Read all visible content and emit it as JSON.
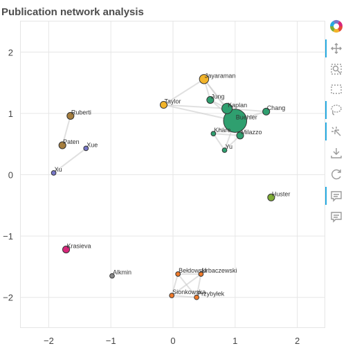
{
  "chart_data": {
    "type": "scatter",
    "title": "Publication network analysis",
    "xlabel": "",
    "ylabel": "",
    "xlim": [
      -2.45,
      2.45
    ],
    "ylim": [
      -2.5,
      2.5
    ],
    "x_ticks": [
      -2,
      -1,
      0,
      1,
      2
    ],
    "y_ticks": [
      2,
      1,
      0,
      -1,
      -2
    ],
    "x_tick_labels": [
      "−2",
      "−1",
      "0",
      "1",
      "2"
    ],
    "y_tick_labels": [
      "2",
      "1",
      "0",
      "−1",
      "−2"
    ],
    "grid": true,
    "nodes": [
      {
        "name": "Jayaraman",
        "x": 0.5,
        "y": 1.56,
        "size": 1.6,
        "color": "#f2b42a"
      },
      {
        "name": "Taylor",
        "x": -0.15,
        "y": 1.14,
        "size": 1.2,
        "color": "#f2b42a"
      },
      {
        "name": "Jung",
        "x": 0.6,
        "y": 1.22,
        "size": 1.2,
        "color": "#2f9f6f"
      },
      {
        "name": "Kaplan",
        "x": 0.87,
        "y": 1.08,
        "size": 1.8,
        "color": "#2f9f6f"
      },
      {
        "name": "Buehler",
        "x": 1.0,
        "y": 0.88,
        "size": 4.0,
        "color": "#2f9f6f"
      },
      {
        "name": "Chang",
        "x": 1.5,
        "y": 1.03,
        "size": 1.2,
        "color": "#2f9f6f"
      },
      {
        "name": "Khare",
        "x": 0.65,
        "y": 0.67,
        "size": 0.8,
        "color": "#2f9f6f"
      },
      {
        "name": "Milazzo",
        "x": 1.08,
        "y": 0.64,
        "size": 1.2,
        "color": "#2f9f6f"
      },
      {
        "name": "Yu",
        "x": 0.83,
        "y": 0.4,
        "size": 0.8,
        "color": "#2f9f6f"
      },
      {
        "name": "Ruberti",
        "x": -1.65,
        "y": 0.96,
        "size": 1.2,
        "color": "#a67e3e"
      },
      {
        "name": "Paten",
        "x": -1.78,
        "y": 0.48,
        "size": 1.2,
        "color": "#a67e3e"
      },
      {
        "name": "Xue",
        "x": -1.4,
        "y": 0.43,
        "size": 0.8,
        "color": "#7777c8"
      },
      {
        "name": "Xu",
        "x": -1.92,
        "y": 0.03,
        "size": 0.8,
        "color": "#7777c8"
      },
      {
        "name": "Huster",
        "x": 1.58,
        "y": -0.37,
        "size": 1.2,
        "color": "#7fad36"
      },
      {
        "name": "Krasieva",
        "x": -1.72,
        "y": -1.22,
        "size": 1.2,
        "color": "#d8277a"
      },
      {
        "name": "Alkmin",
        "x": -0.98,
        "y": -1.65,
        "size": 0.8,
        "color": "#888888"
      },
      {
        "name": "Bełdowski",
        "x": 0.08,
        "y": -1.62,
        "size": 0.8,
        "color": "#f07a2a"
      },
      {
        "name": "Urbaczewski",
        "x": 0.45,
        "y": -1.62,
        "size": 0.8,
        "color": "#f07a2a"
      },
      {
        "name": "Sionkowska",
        "x": -0.02,
        "y": -1.97,
        "size": 0.8,
        "color": "#f07a2a"
      },
      {
        "name": "Przybyłek",
        "x": 0.38,
        "y": -2.0,
        "size": 0.8,
        "color": "#f07a2a"
      }
    ],
    "edges": [
      [
        "Jayaraman",
        "Taylor"
      ],
      [
        "Jayaraman",
        "Jung"
      ],
      [
        "Jayaraman",
        "Kaplan"
      ],
      [
        "Jayaraman",
        "Buehler"
      ],
      [
        "Taylor",
        "Kaplan"
      ],
      [
        "Taylor",
        "Buehler"
      ],
      [
        "Jung",
        "Kaplan"
      ],
      [
        "Jung",
        "Buehler"
      ],
      [
        "Kaplan",
        "Buehler"
      ],
      [
        "Kaplan",
        "Chang"
      ],
      [
        "Buehler",
        "Chang"
      ],
      [
        "Buehler",
        "Khare"
      ],
      [
        "Buehler",
        "Milazzo"
      ],
      [
        "Buehler",
        "Yu"
      ],
      [
        "Kaplan",
        "Milazzo"
      ],
      [
        "Khare",
        "Yu"
      ],
      [
        "Milazzo",
        "Yu"
      ],
      [
        "Khare",
        "Milazzo"
      ],
      [
        "Ruberti",
        "Paten"
      ],
      [
        "Xue",
        "Xu"
      ],
      [
        "Bełdowski",
        "Urbaczewski"
      ],
      [
        "Bełdowski",
        "Sionkowska"
      ],
      [
        "Bełdowski",
        "Przybyłek"
      ],
      [
        "Urbaczewski",
        "Sionkowska"
      ],
      [
        "Urbaczewski",
        "Przybyłek"
      ],
      [
        "Sionkowska",
        "Przybyłek"
      ]
    ]
  },
  "toolbar": {
    "tools": [
      {
        "icon": "logo-icon",
        "active": false
      },
      {
        "icon": "pan-icon",
        "active": true
      },
      {
        "icon": "box-zoom-icon",
        "active": false
      },
      {
        "icon": "box-select-icon",
        "active": false
      },
      {
        "icon": "lasso-select-icon",
        "active": true
      },
      {
        "icon": "tap-icon",
        "active": true
      },
      {
        "icon": "save-icon",
        "active": false
      },
      {
        "icon": "reset-icon",
        "active": false
      },
      {
        "icon": "hover-icon",
        "active": true
      },
      {
        "icon": "hover-icon-2",
        "active": false
      }
    ],
    "accent_color": "#26aae1"
  }
}
